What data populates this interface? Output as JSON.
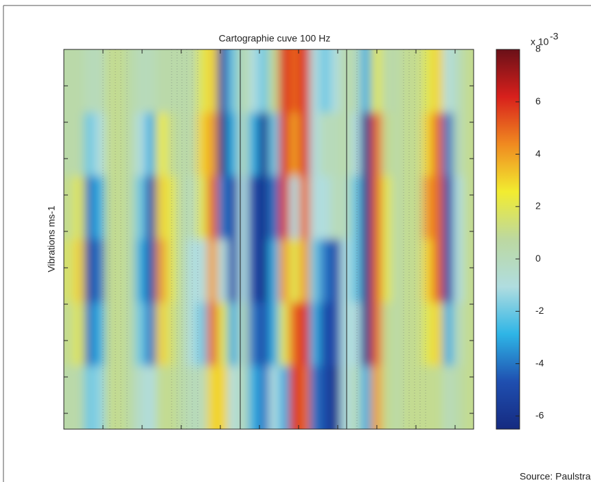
{
  "chart_data": {
    "type": "heatmap",
    "title": "Cartographie cuve 100 Hz",
    "y_label": "Vibrations ms-1",
    "z": [
      [
        0.5,
        0.5,
        0,
        0,
        1,
        1,
        0.5,
        0,
        0,
        0.5,
        0.5,
        0.5,
        0.5,
        2,
        3,
        -5,
        -2,
        0.5,
        -1,
        -2,
        1,
        6,
        5,
        6,
        -1,
        -2,
        -1,
        0.5,
        0,
        -3,
        2,
        0.5,
        0.5,
        1,
        1,
        2,
        3,
        -1,
        0,
        1
      ],
      [
        0.5,
        0.5,
        -2,
        -1,
        1,
        1,
        0.5,
        -1,
        -3,
        2.5,
        1,
        0.5,
        0.5,
        3,
        4,
        -6,
        -3,
        0,
        -3,
        -6,
        -2,
        6,
        4,
        6,
        -1,
        0,
        0,
        0.5,
        -1,
        -6,
        5,
        1,
        0.5,
        1,
        1,
        3,
        5,
        -4,
        0,
        1
      ],
      [
        1,
        2,
        -4,
        -3,
        1,
        1,
        0.5,
        -2,
        -5,
        3,
        2,
        0.5,
        0,
        2,
        5,
        -4,
        -5,
        -1,
        -5,
        -6,
        -4,
        6,
        -1,
        5,
        -1,
        -1,
        0,
        0,
        -2,
        -6,
        5,
        2,
        0.5,
        1,
        1,
        4,
        5,
        -5,
        -1,
        1
      ],
      [
        1.5,
        3,
        -5,
        -4,
        1,
        1,
        0.5,
        -3,
        -5,
        4,
        2,
        0.5,
        -1,
        -1,
        4,
        -1,
        -5,
        -1,
        -5,
        -6,
        -3,
        4,
        2,
        4,
        -2,
        -4,
        -5,
        -1,
        -2,
        -6,
        5,
        2,
        0.5,
        1,
        1,
        3,
        5,
        -5,
        -1,
        1
      ],
      [
        1,
        2,
        -4,
        -3,
        1,
        1,
        0.5,
        -2,
        -4,
        3,
        1.5,
        0.5,
        -1,
        -2,
        5,
        2,
        -3,
        0,
        -4,
        -5,
        -3,
        2,
        5,
        6,
        -3,
        -5,
        -5,
        -1,
        -1,
        -6,
        5,
        1,
        0.5,
        1,
        1,
        2,
        3,
        -3,
        0,
        1
      ],
      [
        0.5,
        0.5,
        -2,
        -1.5,
        1,
        1,
        0.5,
        -0.5,
        -1,
        1,
        1,
        0.5,
        0,
        0,
        3,
        3,
        -1,
        0,
        -3,
        -4,
        -1,
        -3,
        6,
        5,
        -4,
        -5,
        -6,
        -1,
        0,
        -3,
        4,
        1,
        0.5,
        1,
        1,
        1,
        1,
        0,
        0.5,
        1
      ]
    ],
    "clim": [
      -6.5,
      8
    ],
    "cticks": [
      -6,
      -4,
      -2,
      0,
      2,
      4,
      6,
      8
    ],
    "colorbar_multiplier": {
      "base": "x 10",
      "exponent": "-3"
    },
    "colormap": [
      "#152a80",
      "#1f4fb0",
      "#2eb5e6",
      "#b0dde0",
      "#bcd8a0",
      "#f2ec30",
      "#f08a20",
      "#d8201c",
      "#6a1018"
    ],
    "source": "Source: Paulstra"
  }
}
